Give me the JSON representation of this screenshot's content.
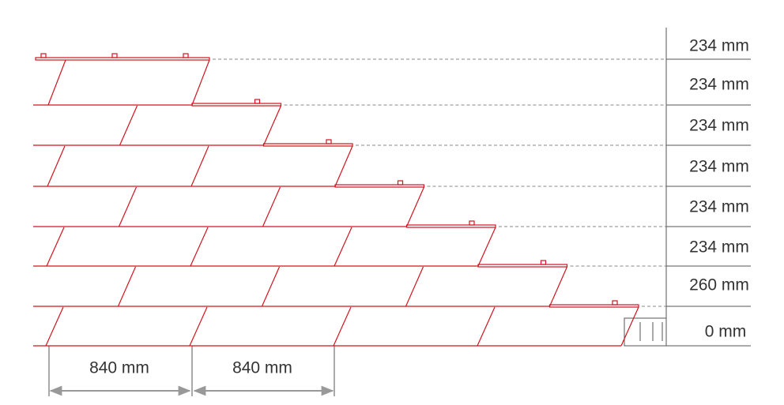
{
  "row_spacings": [
    "234 mm",
    "234 mm",
    "234 mm",
    "234 mm",
    "234 mm",
    "234 mm",
    "260 mm",
    "0 mm"
  ],
  "widths": [
    "840 mm",
    "840 mm"
  ]
}
